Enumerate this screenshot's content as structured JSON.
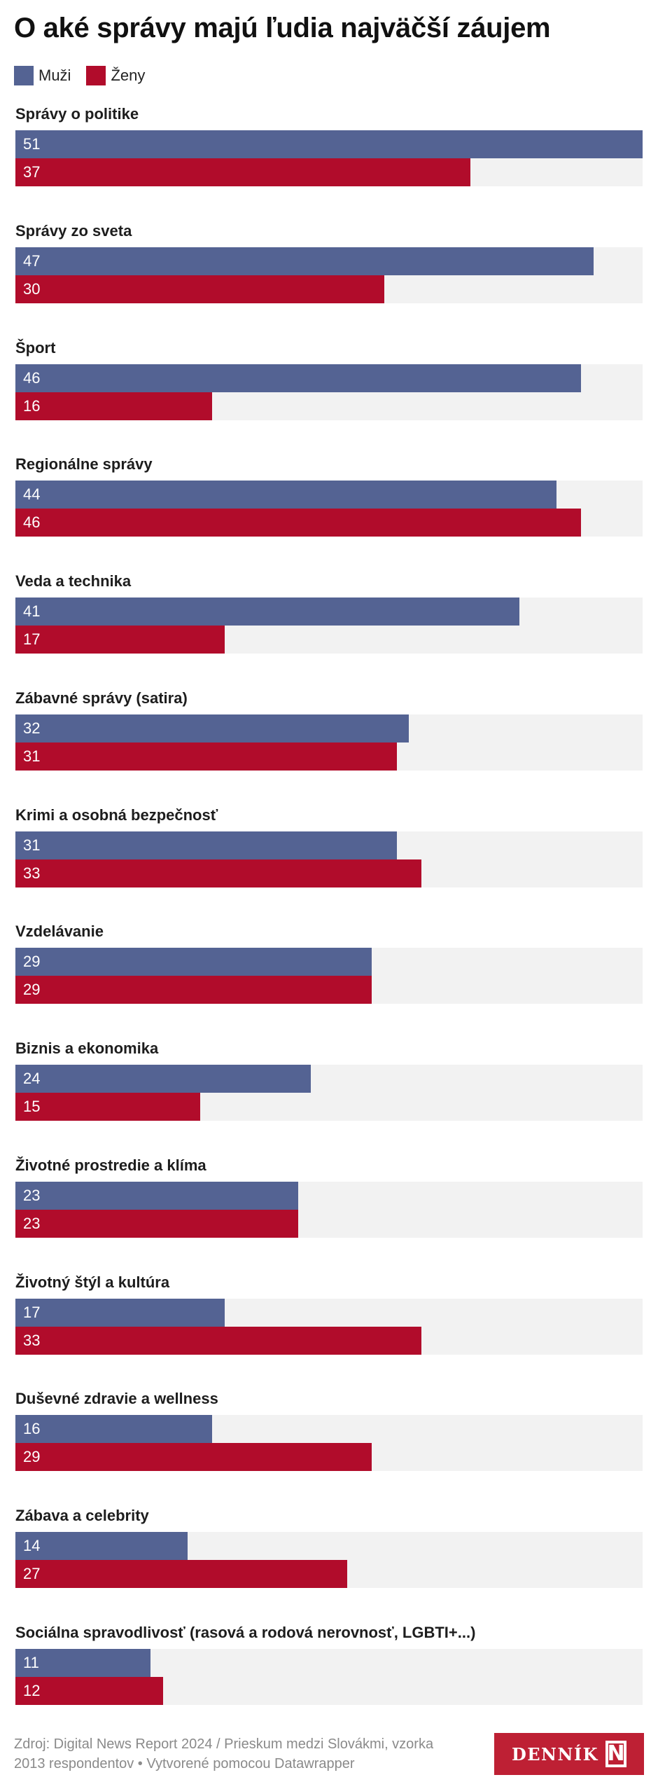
{
  "title": "O aké správy majú ľudia najväčší záujem",
  "legend": [
    {
      "label": "Muži",
      "color": "#546393"
    },
    {
      "label": "Ženy",
      "color": "#b10c2b"
    }
  ],
  "footer": {
    "source_line1": "Zdroj: Digital News Report 2024 / Prieskum medzi Slovákmi, vzorka",
    "source_line2": "2013 respondentov • Vytvorené pomocou Datawrapper"
  },
  "logo": {
    "text": "DENNÍK",
    "mark": "N",
    "color": "#be2034"
  },
  "chart_data": {
    "type": "bar",
    "orientation": "horizontal-grouped",
    "title": "O aké správy majú ľudia najväčší záujem",
    "xlabel": "",
    "ylabel": "",
    "xlim": [
      0,
      51
    ],
    "grid": false,
    "legend_position": "top-left",
    "categories": [
      "Správy o politike",
      "Správy zo sveta",
      "Šport",
      "Regionálne správy",
      "Veda a technika",
      "Zábavné správy (satira)",
      "Krimi a osobná bezpečnosť",
      "Vzdelávanie",
      "Biznis a ekonomika",
      "Životné prostredie a klíma",
      "Životný štýl a kultúra",
      "Duševné zdravie a wellness",
      "Zábava a celebrity",
      "Sociálna spravodlivosť (rasová a rodová nerovnosť, LGBTI+...)"
    ],
    "series": [
      {
        "name": "Muži",
        "color": "#546393",
        "values": [
          51,
          47,
          46,
          44,
          41,
          32,
          31,
          29,
          24,
          23,
          17,
          16,
          14,
          11
        ]
      },
      {
        "name": "Ženy",
        "color": "#b10c2b",
        "values": [
          37,
          30,
          16,
          46,
          17,
          31,
          33,
          29,
          15,
          23,
          33,
          29,
          27,
          12
        ]
      }
    ]
  }
}
